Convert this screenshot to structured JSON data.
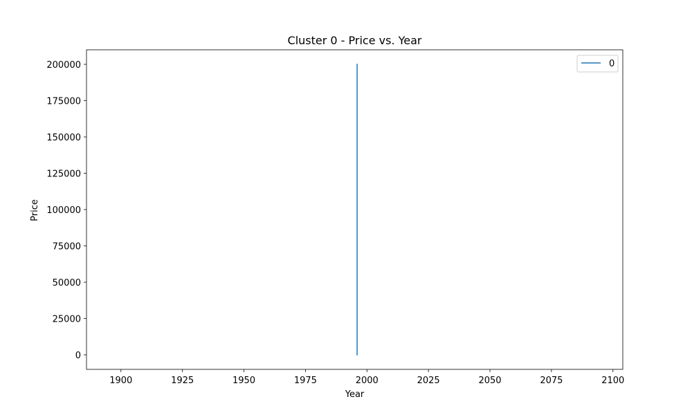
{
  "chart_data": {
    "type": "line",
    "title": "Cluster 0 - Price vs. Year",
    "xlabel": "Year",
    "ylabel": "Price",
    "xlim": [
      1886,
      2104
    ],
    "ylim": [
      -10000,
      210000
    ],
    "xticks": [
      1900,
      1925,
      1950,
      1975,
      2000,
      2025,
      2050,
      2075,
      2100
    ],
    "yticks": [
      0,
      25000,
      50000,
      75000,
      100000,
      125000,
      150000,
      175000,
      200000
    ],
    "grid": false,
    "legend_position": "top-right",
    "series": [
      {
        "name": "0",
        "color": "#1f77b4",
        "x": [
          1996,
          1996
        ],
        "y": [
          0,
          200000
        ]
      }
    ]
  }
}
